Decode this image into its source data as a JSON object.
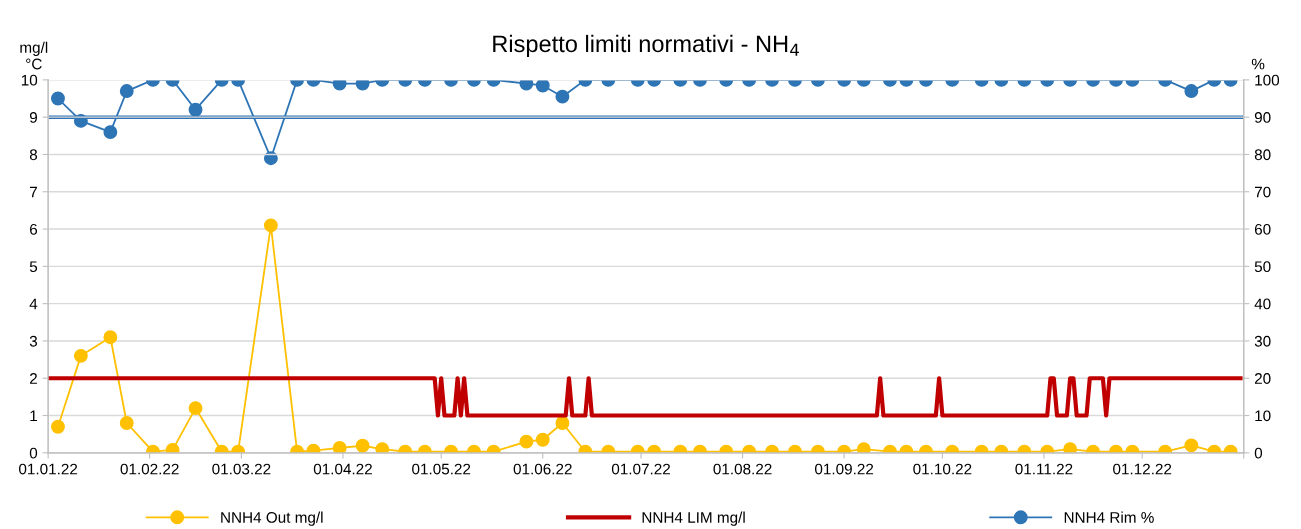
{
  "chart_data": {
    "type": "line",
    "title": "Rispetto limiti normativi - NH$_{4}$",
    "ylabel": "mg/l\n°C",
    "y2label": "%",
    "xlim": [
      "2022-01-01",
      "2023-01-01"
    ],
    "xticks": [
      {
        "value": "2022-01-01",
        "label": "01.01.22"
      },
      {
        "value": "2022-02-01",
        "label": "01.02.22"
      },
      {
        "value": "2022-03-01",
        "label": "01.03.22"
      },
      {
        "value": "2022-04-01",
        "label": "01.04.22"
      },
      {
        "value": "2022-05-01",
        "label": "01.05.22"
      },
      {
        "value": "2022-06-01",
        "label": "01.06.22"
      },
      {
        "value": "2022-07-01",
        "label": "01.07.22"
      },
      {
        "value": "2022-08-01",
        "label": "01.08.22"
      },
      {
        "value": "2022-09-01",
        "label": "01.09.22"
      },
      {
        "value": "2022-10-01",
        "label": "01.10.22"
      },
      {
        "value": "2022-11-01",
        "label": "01.11.22"
      },
      {
        "value": "2022-12-01",
        "label": "01.12.22"
      },
      {
        "value": "2023-01-01",
        "label": null
      }
    ],
    "ylim": [
      0,
      10
    ],
    "yticks": [
      0,
      1,
      2,
      3,
      4,
      5,
      6,
      7,
      8,
      9,
      10
    ],
    "y2lim": [
      0,
      100
    ],
    "y2ticks": [
      0,
      10,
      20,
      30,
      40,
      50,
      60,
      70,
      80,
      90,
      100
    ],
    "grid": "y",
    "legend": "bottom",
    "x": [
      "2022-01-04",
      "2022-01-11",
      "2022-01-20",
      "2022-01-25",
      "2022-02-02",
      "2022-02-08",
      "2022-02-15",
      "2022-02-23",
      "2022-02-28",
      "2022-03-10",
      "2022-03-18",
      "2022-03-23",
      "2022-03-31",
      "2022-04-07",
      "2022-04-13",
      "2022-04-20",
      "2022-04-26",
      "2022-05-04",
      "2022-05-11",
      "2022-05-17",
      "2022-05-27",
      "2022-06-01",
      "2022-06-07",
      "2022-06-14",
      "2022-06-21",
      "2022-06-30",
      "2022-07-05",
      "2022-07-13",
      "2022-07-19",
      "2022-07-27",
      "2022-08-03",
      "2022-08-10",
      "2022-08-17",
      "2022-08-24",
      "2022-09-01",
      "2022-09-07",
      "2022-09-15",
      "2022-09-20",
      "2022-09-26",
      "2022-10-04",
      "2022-10-13",
      "2022-10-19",
      "2022-10-26",
      "2022-11-02",
      "2022-11-09",
      "2022-11-16",
      "2022-11-23",
      "2022-11-28",
      "2022-12-08",
      "2022-12-16",
      "2022-12-23",
      "2022-12-28"
    ],
    "series": [
      {
        "name": "NNH4 Out mg/l",
        "color": "#ffc000",
        "marker": "circle",
        "values": [
          0.7,
          2.6,
          3.1,
          0.8,
          0.03,
          0.08,
          1.2,
          0.03,
          0.03,
          6.1,
          0.03,
          0.06,
          0.13,
          0.19,
          0.1,
          0.03,
          0.03,
          0.03,
          0.03,
          0.03,
          0.3,
          0.35,
          0.8,
          0.03,
          0.03,
          0.03,
          0.03,
          0.03,
          0.03,
          0.03,
          0.03,
          0.03,
          0.03,
          0.03,
          0.03,
          0.1,
          0.03,
          0.03,
          0.03,
          0.03,
          0.03,
          0.03,
          0.03,
          0.03,
          0.1,
          0.03,
          0.03,
          0.03,
          0.03,
          0.2,
          0.03,
          0.03
        ]
      },
      {
        "name": "NNH4 LIM mg/l",
        "color": "#c00000",
        "marker": "none",
        "x": [
          "2022-01-01",
          "2022-04-29",
          "2022-04-30",
          "2022-05-01",
          "2022-05-02",
          "2022-05-05",
          "2022-05-06",
          "2022-05-07",
          "2022-05-08",
          "2022-05-09",
          "2022-06-08",
          "2022-06-09",
          "2022-06-10",
          "2022-06-14",
          "2022-06-15",
          "2022-06-16",
          "2022-09-11",
          "2022-09-12",
          "2022-09-13",
          "2022-09-29",
          "2022-09-30",
          "2022-10-01",
          "2022-11-02",
          "2022-11-03",
          "2022-11-04",
          "2022-11-05",
          "2022-11-08",
          "2022-11-09",
          "2022-11-10",
          "2022-11-11",
          "2022-11-14",
          "2022-11-15",
          "2022-11-19",
          "2022-11-20",
          "2022-11-21",
          "2022-12-31"
        ],
        "values": [
          2,
          2,
          1,
          2,
          1,
          1,
          2,
          1,
          2,
          1,
          1,
          2,
          1,
          1,
          2,
          1,
          1,
          2,
          1,
          1,
          2,
          1,
          1,
          2,
          2,
          1,
          1,
          2,
          2,
          1,
          1,
          2,
          2,
          1,
          2,
          2
        ]
      },
      {
        "name": "NNH4 Rim %",
        "color": "#2e75b6",
        "marker": "circle",
        "axis": "y2",
        "values": [
          95,
          89,
          86,
          97,
          100,
          100,
          92,
          100,
          100,
          79,
          100,
          100,
          99,
          99,
          100,
          100,
          100,
          100,
          100,
          100,
          99,
          98.5,
          95.5,
          100,
          100,
          100,
          100,
          100,
          100,
          100,
          100,
          100,
          100,
          100,
          100,
          100,
          100,
          100,
          100,
          100,
          100,
          100,
          100,
          100,
          100,
          100,
          100,
          100,
          100,
          97,
          100,
          100
        ]
      }
    ],
    "ref_lines": [
      {
        "axis": "y2",
        "value": 90,
        "color": "#2e75b6",
        "line_style": "solid"
      }
    ]
  }
}
